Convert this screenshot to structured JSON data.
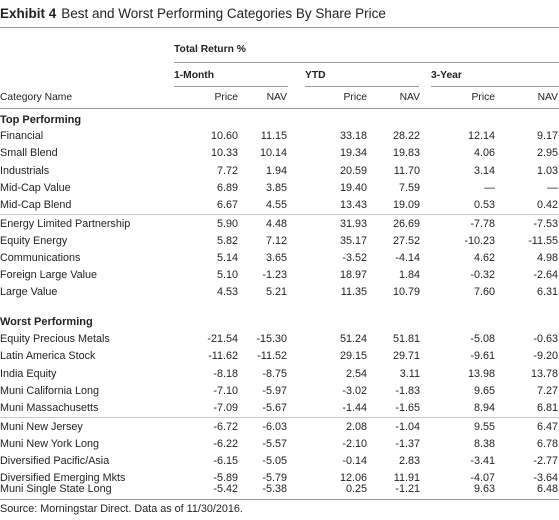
{
  "exhibit": {
    "label": "Exhibit 4",
    "title": "Best and Worst Performing Categories By Share Price"
  },
  "header": {
    "total_return": "Total Return %",
    "groups": [
      "1-Month",
      "YTD",
      "3-Year"
    ],
    "category_col": "Category Name",
    "subcols": [
      "Price",
      "NAV",
      "Price",
      "NAV",
      "Price",
      "NAV"
    ]
  },
  "sections": [
    {
      "title": "Top Performing",
      "rows": [
        [
          "Financial",
          "10.60",
          "11.15",
          "33.18",
          "28.22",
          "12.14",
          "9.17"
        ],
        [
          "Small Blend",
          "10.33",
          "10.14",
          "19.34",
          "19.83",
          "4.06",
          "2.95"
        ],
        [
          "Industrials",
          "7.72",
          "1.94",
          "20.59",
          "11.70",
          "3.14",
          "1.03"
        ],
        [
          "Mid-Cap Value",
          "6.89",
          "3.85",
          "19.40",
          "7.59",
          "—",
          "—"
        ],
        [
          "Mid-Cap Blend",
          "6.67",
          "4.55",
          "13.43",
          "19.09",
          "0.53",
          "0.42"
        ],
        [
          "Energy Limited Partnership",
          "5.90",
          "4.48",
          "31.93",
          "26.69",
          "-7.78",
          "-7.53"
        ],
        [
          "Equity Energy",
          "5.82",
          "7.12",
          "35.17",
          "27.52",
          "-10.23",
          "-11.55"
        ],
        [
          "Communications",
          "5.14",
          "3.65",
          "-3.52",
          "-4.14",
          "4.62",
          "4.98"
        ],
        [
          "Foreign Large Value",
          "5.10",
          "-1.23",
          "18.97",
          "1.84",
          "-0.32",
          "-2.64"
        ],
        [
          "Large Value",
          "4.53",
          "5.21",
          "11.35",
          "10.79",
          "7.60",
          "6.31"
        ]
      ]
    },
    {
      "title": "Worst Performing",
      "rows": [
        [
          "Equity Precious Metals",
          "-21.54",
          "-15.30",
          "51.24",
          "51.81",
          "-5.08",
          "-0.63"
        ],
        [
          "Latin America Stock",
          "-11.62",
          "-11.52",
          "29.15",
          "29.71",
          "-9.61",
          "-9.20"
        ],
        [
          "India Equity",
          "-8.18",
          "-8.75",
          "2.54",
          "3.11",
          "13.98",
          "13.78"
        ],
        [
          "Muni California Long",
          "-7.10",
          "-5.97",
          "-3.02",
          "-1.83",
          "9.65",
          "7.27"
        ],
        [
          "Muni Massachusetts",
          "-7.09",
          "-5.67",
          "-1.44",
          "-1.65",
          "8.94",
          "6.81"
        ],
        [
          "Muni New Jersey",
          "-6.72",
          "-6.03",
          "2.08",
          "-1.04",
          "9.55",
          "6.47"
        ],
        [
          "Muni New York Long",
          "-6.22",
          "-5.57",
          "-2.10",
          "-1.37",
          "8.38",
          "6.78"
        ],
        [
          "Diversified Pacific/Asia",
          "-6.15",
          "-5.05",
          "-0.14",
          "2.83",
          "-3.41",
          "-2.77"
        ],
        [
          "Diversified Emerging Mkts",
          "-5.89",
          "-5.79",
          "12.06",
          "11.91",
          "-4.07",
          "-3.64"
        ],
        [
          "Muni Single State Long",
          "-5.42",
          "-5.38",
          "0.25",
          "-1.21",
          "9.63",
          "6.48"
        ]
      ]
    }
  ],
  "source": "Source: Morningstar Direct. Data as of 11/30/2016."
}
